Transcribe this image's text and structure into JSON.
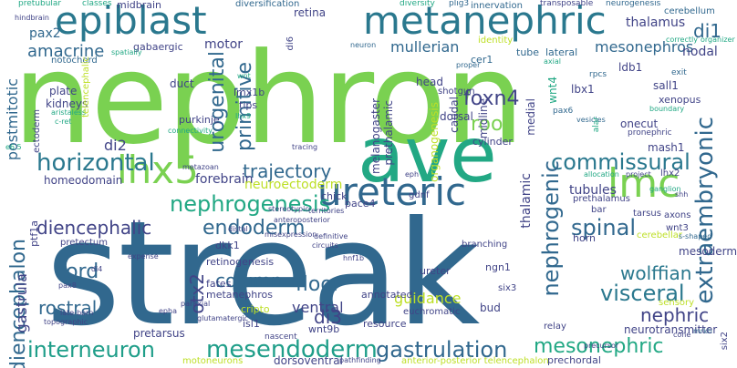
{
  "palette": {
    "lime": "#7ad151",
    "green": "#22a884",
    "teal": "#2a788e",
    "blue": "#31688e",
    "indigo": "#414487",
    "purple": "#440154",
    "yellowgreen": "#bddf26",
    "seafoam": "#35b779",
    "aqua": "#1f9e89",
    "yellow": "#fde725"
  },
  "words": {
    "nephron": "nephron",
    "streak": "streak",
    "ave": "ave",
    "epiblast": "epiblast",
    "metanephric": "metanephric",
    "lmc": "lmc",
    "lhx5": "lhx5",
    "ureteric": "ureteric",
    "mesonephric": "mesonephric",
    "gastrulation": "gastrulation",
    "mesendoderm": "mesendoderm",
    "interneuron": "interneuron",
    "horizontal": "horizontal",
    "commissural": "commissural",
    "nephrogenic": "nephrogenic",
    "nephrogenesis": "nephrogenesis",
    "trajectory": "trajectory",
    "urogenital": "urogenital",
    "primitive": "primitive",
    "diencephalon": "diencephalon",
    "diencephalic": "diencephalic",
    "endoderm": "endoderm",
    "visceral": "visceral",
    "wolffian": "wolffian",
    "spinal": "spinal",
    "extraembryonic": "extraembryonic",
    "foxn4": "foxn4",
    "roof": "roof",
    "floor": "floor",
    "column": "column",
    "amacrine": "amacrine",
    "pax2": "pax2",
    "postmitotic": "postmitotic",
    "mullerian": "mullerian",
    "mesonephros": "mesonephros",
    "thalamus": "thalamus",
    "di1": "di1",
    "motor": "motor",
    "otx2": "otx2",
    "di3": "di3",
    "gastrula": "gastrula",
    "cord": "cord",
    "rostral": "rostral",
    "ventral": "ventral",
    "nephric": "nephric",
    "di2": "di2",
    "forebrain": "forebrain",
    "neuroectoderm": "neuroectoderm",
    "tubules": "tubules",
    "guidance": "guidance",
    "thalamic": "thalamic",
    "midbrain": "midbrain",
    "notochord": "notochord",
    "gabaergic": "gabaergic",
    "retina": "retina",
    "diversification": "diversification",
    "innervation": "innervation",
    "neurogenesis": "neurogenesis",
    "cerebellum": "cerebellum",
    "nodal": "nodal",
    "lateral": "lateral",
    "tube": "tube",
    "identity": "identity",
    "neuron": "neuron",
    "cer1": "cer1",
    "ldb1": "ldb1",
    "sall1": "sall1",
    "xenopus": "xenopus",
    "lbx1": "lbx1",
    "wnt4": "wnt4",
    "onecut": "onecut",
    "pronephric": "pronephric",
    "mash1": "mash1",
    "lhx2": "lhx2",
    "prethalamus": "prethalamus",
    "bar": "bar",
    "tarsus": "tarsus",
    "axons": "axons",
    "horn": "horn",
    "cerebellar": "cerebellar",
    "wnt3": "wnt3",
    "mesoderm": "mesoderm",
    "sensory": "sensory",
    "neurotransmitter": "neurotransmitter",
    "duct": "duct",
    "lmx1b": "lmx1b",
    "tips": "tips",
    "purkinje": "purkinje",
    "plate": "plate",
    "kidneys": "kidneys",
    "ectoderm": "ectoderm",
    "homeodomain": "homeodomain",
    "pft1a": "pft1a",
    "pretectum": "pretectum",
    "dkk1": "dkk1",
    "retinogenesis": "retinogenesis",
    "fates": "fates",
    "metanephros": "metanephros",
    "cripto": "cripto",
    "wnt9b": "wnt9b",
    "isl1": "isl1",
    "pretarsus": "pretarsus",
    "motoneurons": "motoneurons",
    "dorsoventral": "dorsoventral",
    "annotated": "annotated",
    "resource": "resource",
    "euchromatic": "euchromatic",
    "bud": "bud",
    "ureter": "ureter",
    "ngn1": "ngn1",
    "branching": "branching",
    "six3": "six3",
    "relay": "relay",
    "prechordal": "prechordal",
    "anteroposterior_label": "anterior-posterior telencephalon",
    "gdnf": "gdnf",
    "pace4": "pace4",
    "chick": "chick",
    "head": "head",
    "shotgun": "shotgun",
    "dorsal": "dorsal",
    "cylinder": "cylinder",
    "midline": "midline",
    "prethalamic": "prethalamic",
    "melanogaster": "melanogaster",
    "caudal": "caudal",
    "organogenesis": "organogenesis",
    "telencephalic": "telencephalic",
    "connectivity": "connectivity",
    "medial": "medial",
    "pax6": "pax6",
    "rpcs": "rpcs",
    "vesicles": "vesicles",
    "axial": "axial",
    "proper": "proper",
    "transposable": "transposable",
    "correctly": "correctly",
    "organizer": "organizer",
    "exit": "exit",
    "boundary": "boundary",
    "hnf1b": "hnf1b",
    "epha": "epha",
    "paraxial": "paraxial",
    "nascent": "nascent",
    "di4": "di4",
    "pax8": "pax8",
    "late_born": "late-born",
    "topographic": "topographic",
    "glutamatergic": "glutamatergic",
    "circuits": "circuits",
    "definitive": "definitive",
    "misexpression": "misexpression",
    "distal": "distal",
    "stereotypic": "stereotypic",
    "territories": "territories",
    "anteroposterior": "anteroposterior",
    "expense": "expense",
    "tracing": "tracing",
    "metazoan": "metazoan",
    "eph": "eph",
    "allocation": "allocation",
    "project": "project",
    "ganglion": "ganglion",
    "shh": "shh",
    "s_shaped": "s-shaped",
    "six2": "six2",
    "cone": "cone",
    "mrkh": "mrkh",
    "classes": "classes",
    "pretubular": "pretubular",
    "spatially": "spatially",
    "hindbrain": "hindbrain",
    "diversity": "diversity",
    "ptf1a_small": "ptf1a",
    "di6": "di6",
    "wnt": "wnt",
    "lhx9": "lhx9",
    "e6_5": "e6.5",
    "c_ret": "c-ret",
    "aristaless": "aristaless",
    "plig3": "plig3",
    "movements": "movements",
    "ependymal": "ependymal",
    "pnf": "pnf",
    "alar": "alar",
    "pathfinding": "pathfinding",
    "precursor": "precursor"
  }
}
